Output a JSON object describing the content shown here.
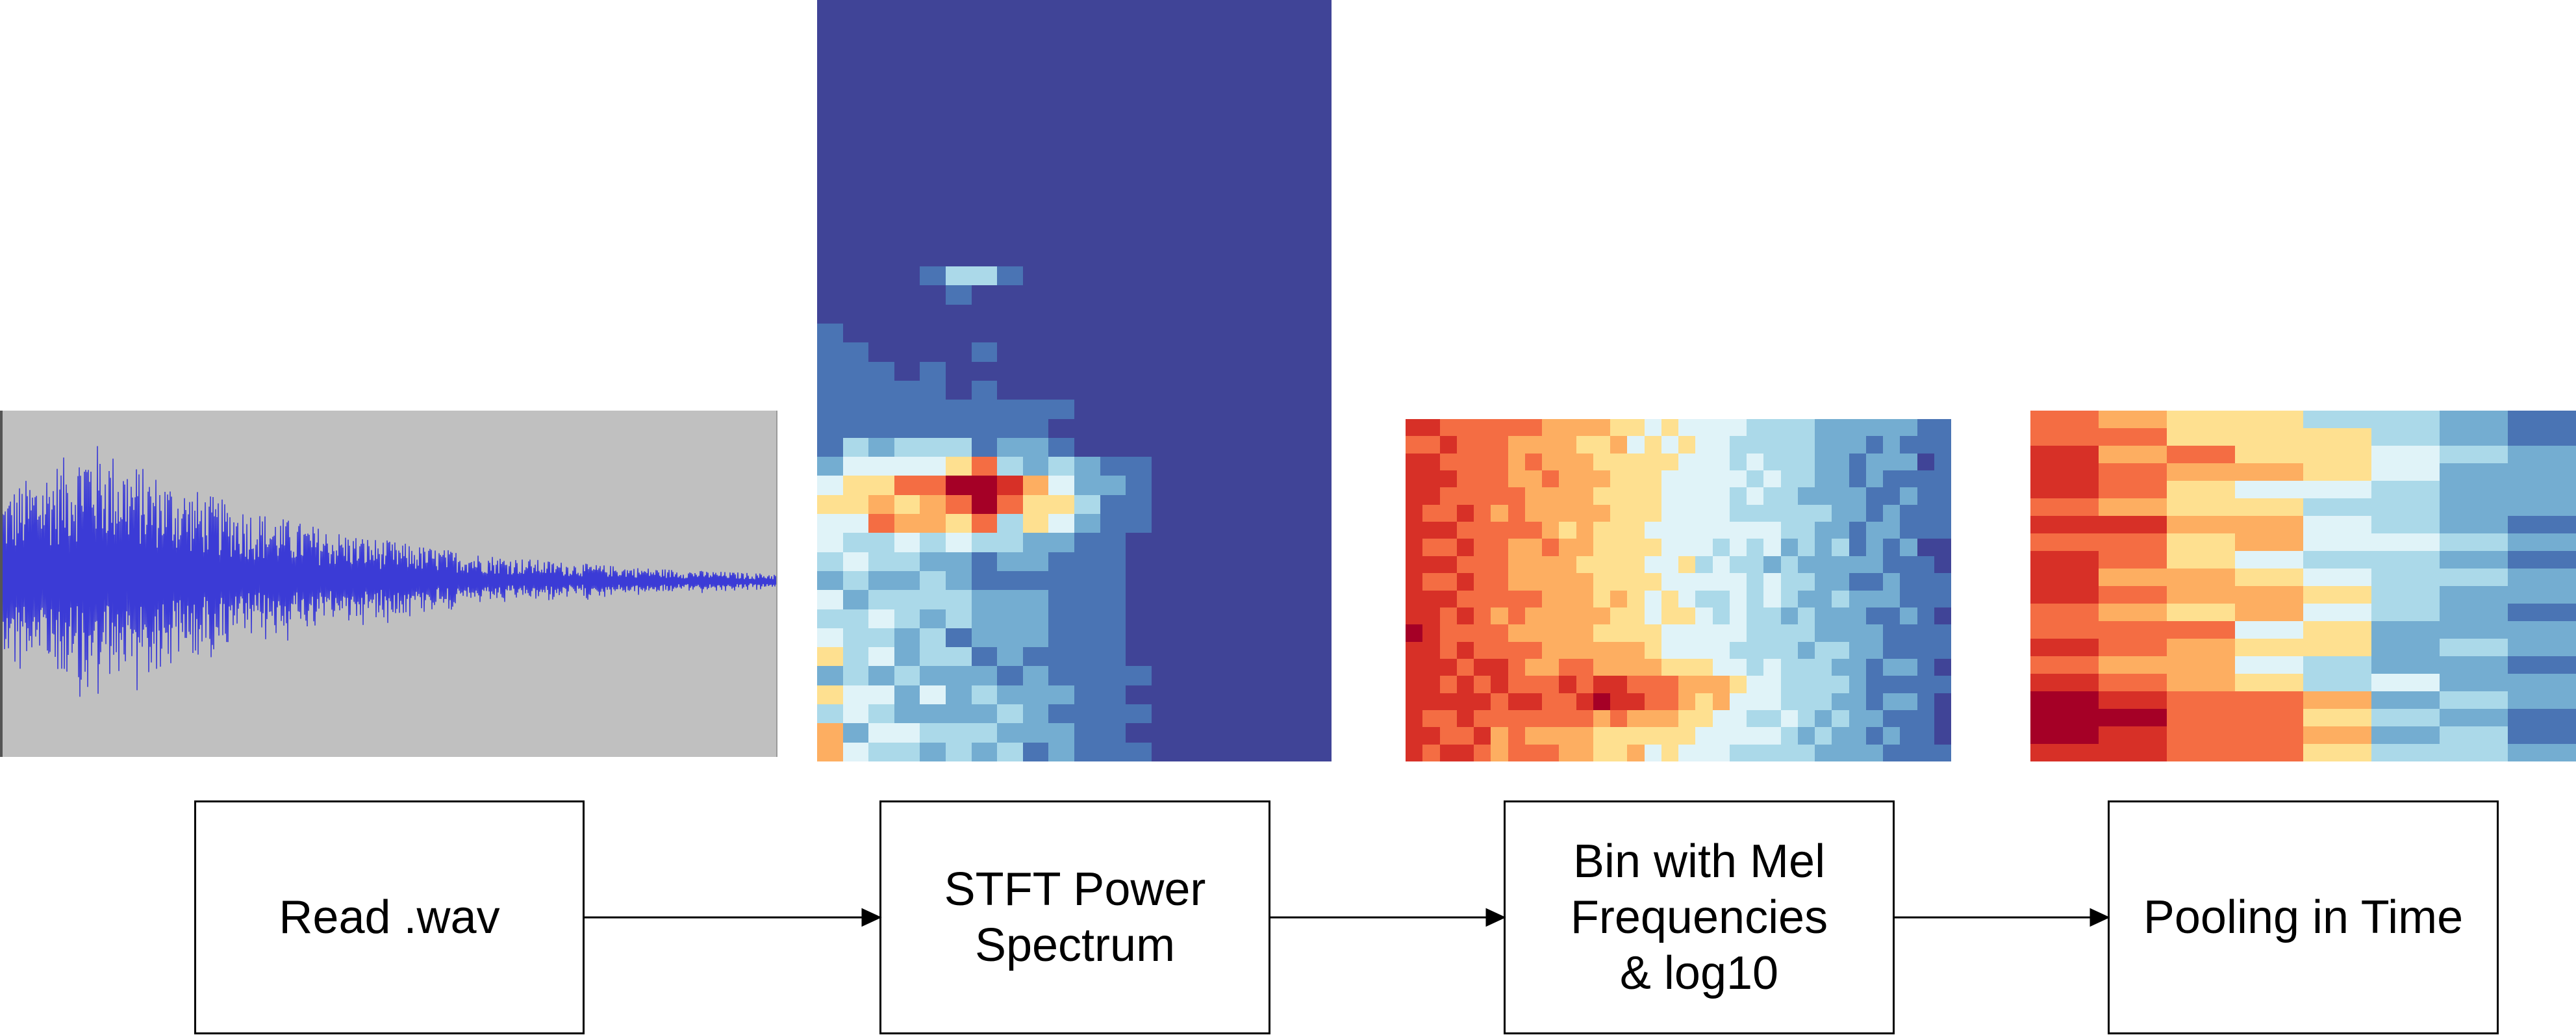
{
  "steps": [
    {
      "label": "Read .wav"
    },
    {
      "label": "STFT Power\nSpectrum"
    },
    {
      "label": "Bin with Mel\nFrequencies\n& log10"
    },
    {
      "label": "Pooling in Time"
    }
  ],
  "colors": {
    "waveform_bg": "#c0c0c0",
    "waveform_line": "#3b3bd6",
    "spectrogram_bg": "#404497",
    "arrow": "#000000",
    "colormap": [
      "#404497",
      "#4a74b4",
      "#74add1",
      "#abd9e9",
      "#e0f3f8",
      "#fee090",
      "#fdae61",
      "#f46d43",
      "#d73027",
      "#a50026"
    ]
  },
  "icons": {
    "waveform": "audio-waveform-image",
    "stft": "power-spectrogram-image",
    "mel": "mel-log-spectrogram-image",
    "pooled": "time-pooled-spectrogram-image",
    "arrow": "arrow-right-icon"
  }
}
